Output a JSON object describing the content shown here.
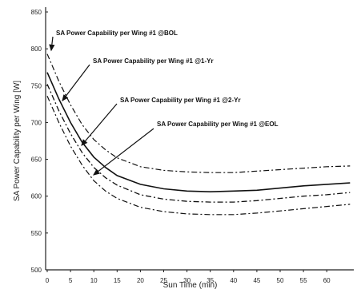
{
  "chart_data": {
    "type": "line",
    "xlabel": "Sun Time (min)",
    "ylabel": "SA Power Capability per Wing [W]",
    "xlim": [
      0,
      65
    ],
    "ylim": [
      500,
      850
    ],
    "x_ticks": [
      "0",
      "5",
      "10",
      "15",
      "20",
      "25",
      "30",
      "35",
      "40",
      "45",
      "50",
      "55",
      "60"
    ],
    "y_ticks": [
      "500",
      "550",
      "600",
      "650",
      "700",
      "750",
      "800",
      "850"
    ],
    "grid": false,
    "legend": "annotations",
    "annotations": [
      "SA Power Capability per Wing #1 @BOL",
      "SA Power Capability per Wing #1 @1-Yr",
      "SA Power Capability per Wing #1 @2-Yr",
      "SA Power Capability per Wing #1 @EOL"
    ],
    "x": [
      0,
      2.5,
      5,
      7.5,
      10,
      12.5,
      15,
      20,
      25,
      30,
      35,
      40,
      45,
      50,
      55,
      60,
      65
    ],
    "series": [
      {
        "values": [
          793,
          756,
          724,
          697,
          677,
          663,
          652,
          640,
          635,
          633,
          632,
          632,
          634,
          636,
          638,
          640,
          641
        ]
      },
      {
        "values": [
          768,
          732,
          700,
          673,
          653,
          639,
          628,
          616,
          610,
          607,
          606,
          607,
          608,
          611,
          614,
          616,
          618
        ]
      },
      {
        "values": [
          752,
          716,
          685,
          659,
          639,
          625,
          615,
          602,
          596,
          593,
          592,
          592,
          594,
          597,
          600,
          602,
          605
        ]
      },
      {
        "values": [
          736,
          700,
          668,
          642,
          621,
          607,
          597,
          585,
          579,
          576,
          575,
          575,
          577,
          580,
          583,
          586,
          589
        ]
      }
    ]
  }
}
